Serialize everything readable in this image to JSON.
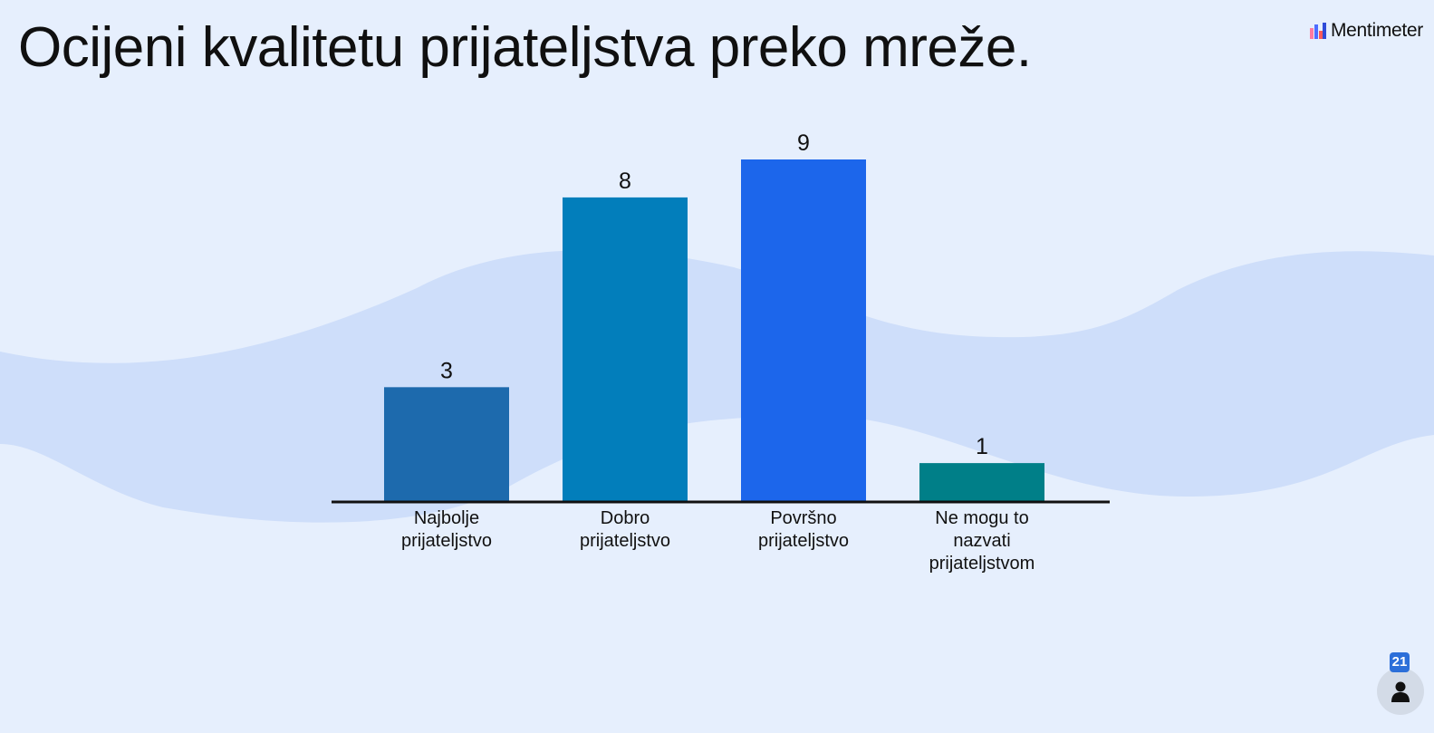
{
  "title": "Ocijeni kvalitetu prijateljstva preko mreže.",
  "brand": {
    "name": "Mentimeter",
    "icon": "mentimeter-logo-icon"
  },
  "participants": {
    "count": "21",
    "icon": "person-icon"
  },
  "colors": {
    "background": "#e6effd",
    "wave": "#cedefa",
    "axis": "#111111"
  },
  "chart_data": {
    "type": "bar",
    "title": "",
    "xlabel": "",
    "ylabel": "",
    "ylim": [
      0,
      9
    ],
    "grid": false,
    "legend": "none",
    "categories": [
      "Najbolje prijateljstvo",
      "Dobro prijateljstvo",
      "Površno prijateljstvo",
      "Ne mogu to nazvati prijateljstvom"
    ],
    "values": [
      3,
      8,
      9,
      1
    ],
    "bar_colors": [
      "#1d6aad",
      "#027ebb",
      "#1c66eb",
      "#007f88"
    ]
  }
}
